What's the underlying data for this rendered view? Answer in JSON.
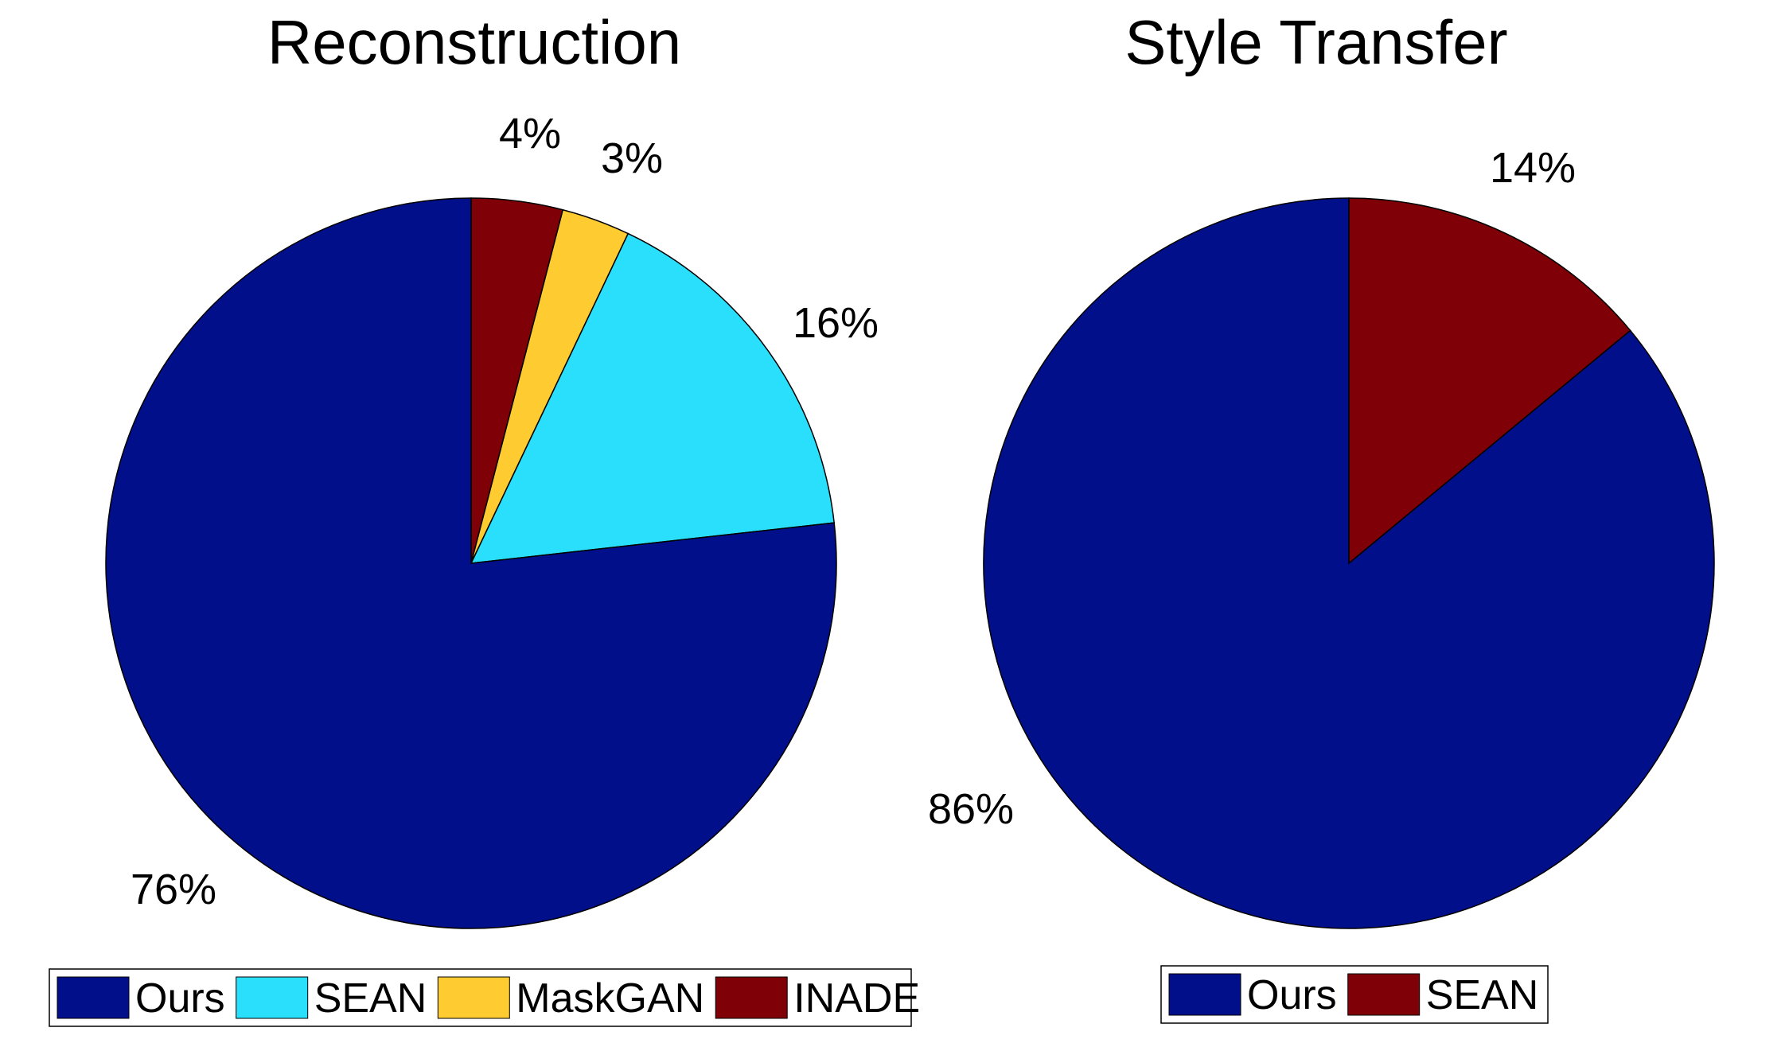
{
  "chart_data": [
    {
      "type": "pie",
      "title": "Reconstruction",
      "slices": [
        {
          "name": "INADE",
          "value": 4,
          "label": "4%",
          "color": "#7F0006"
        },
        {
          "name": "MaskGAN",
          "value": 3,
          "label": "3%",
          "color": "#FECB30"
        },
        {
          "name": "SEAN",
          "value": 16,
          "label": "16%",
          "color": "#2ADFFB"
        },
        {
          "name": "Ours",
          "value": 76,
          "label": "76%",
          "color": "#020F8A"
        }
      ],
      "legend": {
        "placement": "bottom",
        "entries": [
          {
            "name": "Ours",
            "color": "#020F8A"
          },
          {
            "name": "SEAN",
            "color": "#2ADFFB"
          },
          {
            "name": "MaskGAN",
            "color": "#FECB30"
          },
          {
            "name": "INADE",
            "color": "#7F0006"
          }
        ]
      }
    },
    {
      "type": "pie",
      "title": "Style Transfer",
      "slices": [
        {
          "name": "SEAN",
          "value": 14,
          "label": "14%",
          "color": "#7F0006"
        },
        {
          "name": "Ours",
          "value": 86,
          "label": "86%",
          "color": "#020F8A"
        }
      ],
      "legend": {
        "placement": "bottom",
        "entries": [
          {
            "name": "Ours",
            "color": "#020F8A"
          },
          {
            "name": "SEAN",
            "color": "#7F0006"
          }
        ]
      }
    }
  ]
}
